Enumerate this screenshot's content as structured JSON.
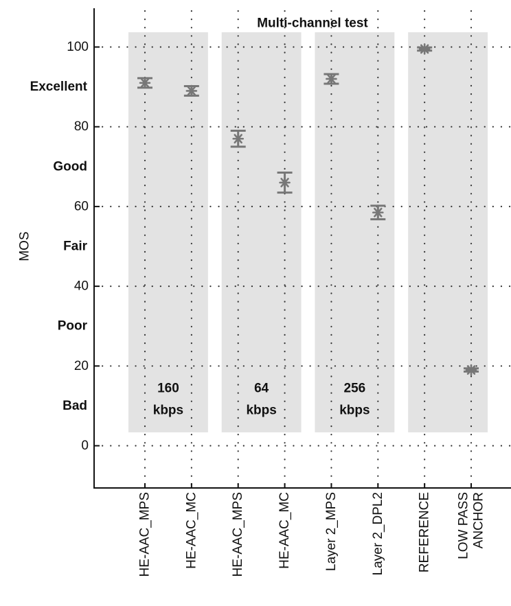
{
  "chart_data": {
    "type": "scatter",
    "title": "Multi-channel test",
    "ylabel": "MOS",
    "xlabel": "",
    "ylim": [
      -10,
      110
    ],
    "yticks": [
      0,
      20,
      40,
      60,
      80,
      100
    ],
    "quality_labels": [
      {
        "value": 90,
        "label": "Excellent"
      },
      {
        "value": 70,
        "label": "Good"
      },
      {
        "value": 50,
        "label": "Fair"
      },
      {
        "value": 30,
        "label": "Poor"
      },
      {
        "value": 10,
        "label": "Bad"
      }
    ],
    "grid": true,
    "categories": [
      [
        "HE-AAC_MPS"
      ],
      [
        "HE-AAC_MC"
      ],
      [
        "HE-AAC_MPS"
      ],
      [
        "HE-AAC_MC"
      ],
      [
        "Layer 2_MPS"
      ],
      [
        "Layer 2_DPL2"
      ],
      [
        "REFERENCE"
      ],
      [
        "LOW PASS",
        "ANCHOR"
      ]
    ],
    "points": [
      {
        "mean": 91,
        "low": 89.8,
        "high": 92.2
      },
      {
        "mean": 89,
        "low": 87.8,
        "high": 90.2
      },
      {
        "mean": 77,
        "low": 75,
        "high": 79
      },
      {
        "mean": 66,
        "low": 63.5,
        "high": 68.5
      },
      {
        "mean": 92,
        "low": 90.8,
        "high": 93.2
      },
      {
        "mean": 58.5,
        "low": 56.8,
        "high": 60.2
      },
      {
        "mean": 99.5,
        "low": 99.1,
        "high": 99.9
      },
      {
        "mean": 19,
        "low": 18.6,
        "high": 19.4
      }
    ],
    "groups": [
      {
        "label": [
          "160",
          "kbps"
        ],
        "start": 0,
        "end": 1,
        "shaded": true
      },
      {
        "label": [
          "64",
          "kbps"
        ],
        "start": 2,
        "end": 3,
        "shaded": true
      },
      {
        "label": [
          "256",
          "kbps"
        ],
        "start": 4,
        "end": 5,
        "shaded": true
      },
      {
        "label": [],
        "start": 6,
        "end": 7,
        "shaded": true
      }
    ],
    "colors": {
      "band": "#e3e3e3",
      "marker": "#777777",
      "axis": "#111111",
      "grid": "#333333"
    }
  }
}
